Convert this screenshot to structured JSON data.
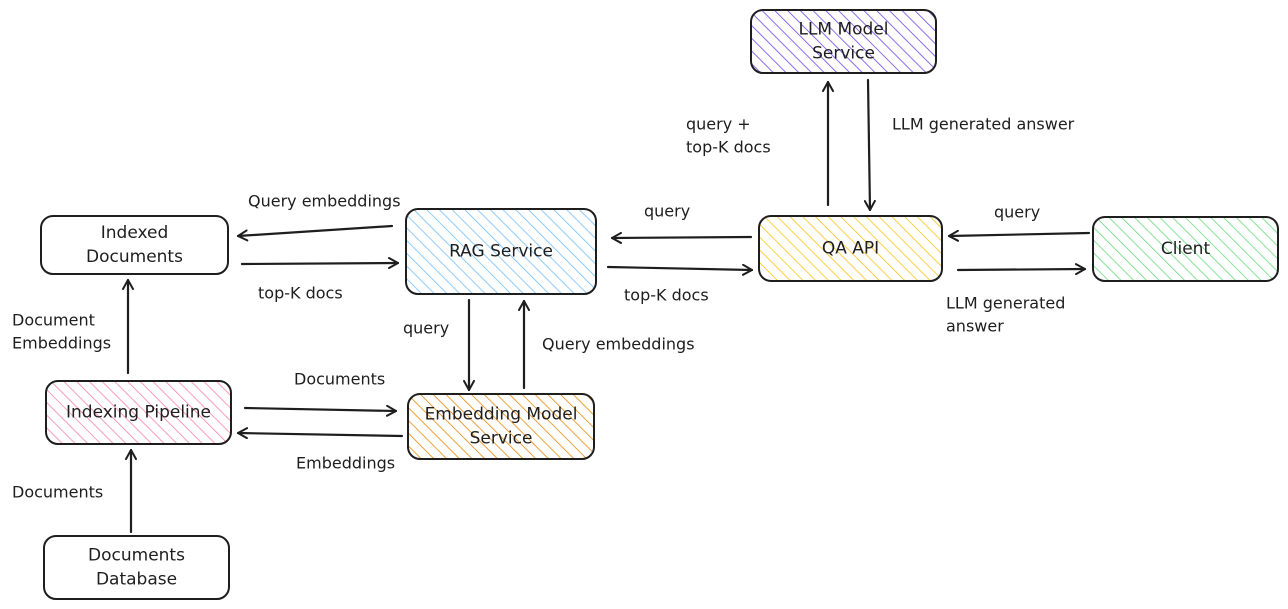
{
  "nodes": {
    "llm_model_service": {
      "lines": [
        "LLM Model",
        "Service"
      ],
      "color": "#7048e8"
    },
    "indexed_documents": {
      "lines": [
        "Indexed",
        "Documents"
      ],
      "color": "#ffffff"
    },
    "rag_service": {
      "lines": [
        "RAG Service"
      ],
      "color": "#74c0fc"
    },
    "qa_api": {
      "lines": [
        "QA API"
      ],
      "color": "#fcc419"
    },
    "client": {
      "lines": [
        "Client"
      ],
      "color": "#69db7c"
    },
    "indexing_pipeline": {
      "lines": [
        "Indexing Pipeline"
      ],
      "color": "#f783ac"
    },
    "embedding_model_service": {
      "lines": [
        "Embedding Model",
        "Service"
      ],
      "color": "#e8890c"
    },
    "documents_database": {
      "lines": [
        "Documents",
        "Database"
      ],
      "color": "#ffffff"
    }
  },
  "edges": {
    "qa_to_llm": {
      "lines": [
        "query +",
        "top-K docs"
      ]
    },
    "llm_to_qa": {
      "lines": [
        "LLM generated answer"
      ]
    },
    "rag_to_indexed": {
      "lines": [
        "Query embeddings"
      ]
    },
    "indexed_to_rag": {
      "lines": [
        "top-K docs"
      ]
    },
    "qa_to_rag": {
      "lines": [
        "query"
      ]
    },
    "rag_to_qa": {
      "lines": [
        "top-K docs"
      ]
    },
    "client_to_qa": {
      "lines": [
        "query"
      ]
    },
    "qa_to_client": {
      "lines": [
        "LLM generated",
        "answer"
      ]
    },
    "pipeline_to_indexed": {
      "lines": [
        "Document",
        "Embeddings"
      ]
    },
    "rag_to_embedding": {
      "lines": [
        "query"
      ]
    },
    "embedding_to_rag": {
      "lines": [
        "Query embeddings"
      ]
    },
    "pipeline_to_embedding": {
      "lines": [
        "Documents"
      ]
    },
    "embedding_to_pipeline": {
      "lines": [
        "Embeddings"
      ]
    },
    "database_to_pipeline": {
      "lines": [
        "Documents"
      ]
    }
  }
}
